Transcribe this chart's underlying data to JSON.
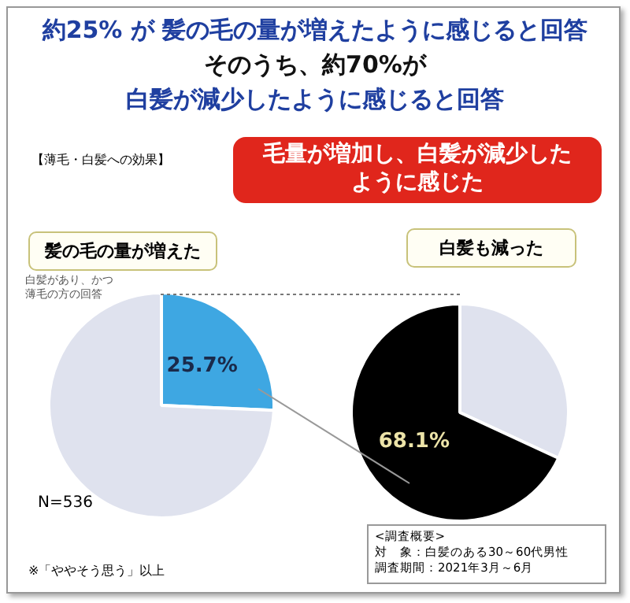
{
  "chart_data": [
    {
      "type": "pie",
      "title": "約25% が 髪の毛の量が増えたように感じると回答",
      "subtitle": "そのうち、約70%が",
      "categories": [
        "髪の毛の量が増えた",
        null
      ],
      "values": [
        25.7,
        74.3
      ],
      "colors": [
        "#3ea7e2",
        "#dfe2ee"
      ],
      "value_labels": [
        "25.7%",
        null
      ],
      "legend": false,
      "annotations": [
        "白髪が減少したように感じると回答",
        "【薄毛・白髪への効果】",
        "毛量が増加し、白髪が減少したように感じた",
        "白髪があり、かつ薄毛の方の回答",
        "N=536",
        "※「ややそう思う」以上"
      ]
    },
    {
      "type": "pie",
      "categories": [
        null,
        "白髪も減った"
      ],
      "values": [
        31.9,
        68.1
      ],
      "colors": [
        "#dfe2ee",
        "#000000"
      ],
      "value_labels": [
        null,
        "68.1%"
      ],
      "legend": false,
      "annotations": [
        "<調査概要>",
        "対　象：白髪のある30～60代男性",
        "調査期間：2021年3月～6月"
      ]
    }
  ]
}
